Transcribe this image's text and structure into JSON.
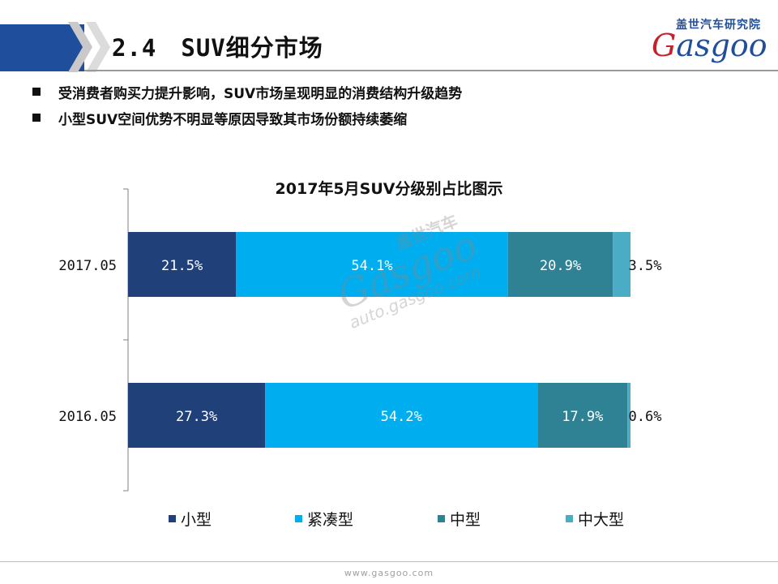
{
  "header": {
    "title": "2.4　SUV细分市场",
    "logo_cn": "盖世汽车研究院",
    "logo_en_g": "G",
    "logo_en_rest": "asgoo",
    "colors": {
      "bar": "#1f4e9c",
      "accent": "#c8202a"
    }
  },
  "bullets": [
    "受消费者购买力提升影响，SUV市场呈现明显的消费结构升级趋势",
    "小型SUV空间优势不明显等原因导致其市场份额持续萎缩"
  ],
  "watermark": {
    "cn": "盖世汽车",
    "en": "Gasgoo",
    "url": "auto.gasgoo.com"
  },
  "chart_data": {
    "type": "bar",
    "orientation": "horizontal",
    "stacked": true,
    "title": "2017年5月SUV分级别占比图示",
    "categories": [
      "2017.05",
      "2016.05"
    ],
    "series": [
      {
        "name": "小型",
        "values": [
          21.5,
          27.3
        ],
        "labels": [
          "21.5%",
          "27.3%"
        ],
        "color": "#1f4078"
      },
      {
        "name": "紧凑型",
        "values": [
          54.1,
          54.2
        ],
        "labels": [
          "54.1%",
          "54.2%"
        ],
        "color": "#00adee"
      },
      {
        "name": "中型",
        "values": [
          20.9,
          17.9
        ],
        "labels": [
          "20.9%",
          "17.9%"
        ],
        "color": "#2e8293"
      },
      {
        "name": "中大型",
        "values": [
          3.5,
          0.6
        ],
        "labels": [
          "3.5%",
          "0.6%"
        ],
        "color": "#4bacc6"
      }
    ],
    "xlim": [
      0,
      100
    ],
    "legend_position": "bottom",
    "grid": false
  },
  "footer": {
    "url": "www.gasgoo.com"
  }
}
